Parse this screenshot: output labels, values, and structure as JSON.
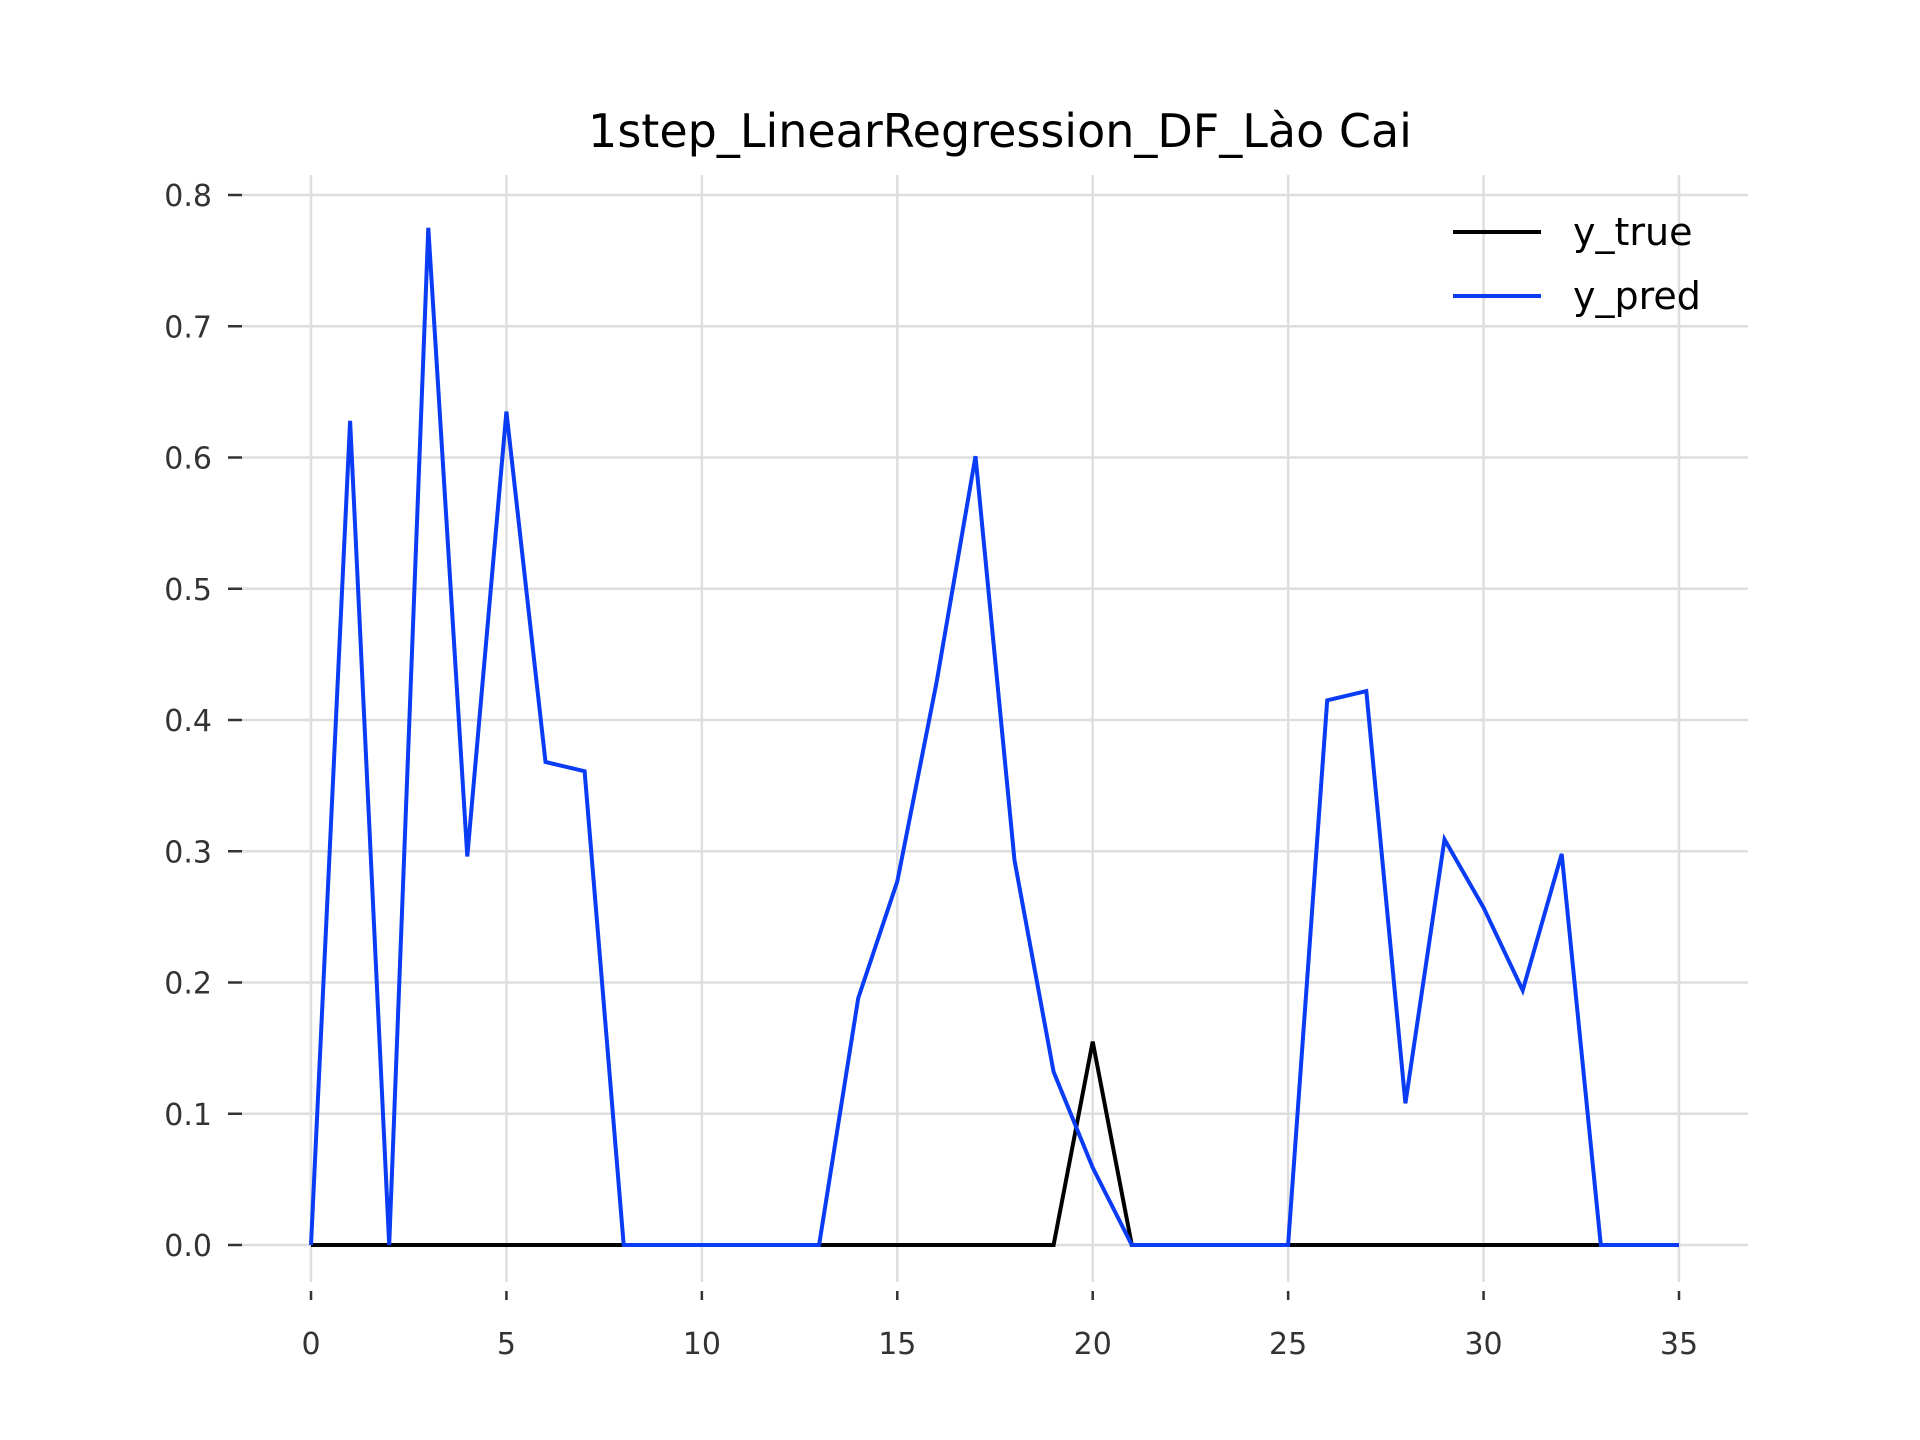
{
  "chart_data": {
    "type": "line",
    "title": "1step_LinearRegression_DF_Lào Cai",
    "xlabel": "",
    "ylabel": "",
    "xlim": [
      0,
      35
    ],
    "ylim": [
      0,
      0.8
    ],
    "xticks": [
      0,
      5,
      10,
      15,
      20,
      25,
      30,
      35
    ],
    "xtick_labels": [
      "0",
      "5",
      "10",
      "15",
      "20",
      "25",
      "30",
      "35"
    ],
    "yticks": [
      0,
      0.1,
      0.2,
      0.3,
      0.4,
      0.5,
      0.6,
      0.7,
      0.8
    ],
    "ytick_labels": [
      "0.0",
      "0.1",
      "0.2",
      "0.3",
      "0.4",
      "0.5",
      "0.6",
      "0.7",
      "0.8"
    ],
    "grid": true,
    "legend_position": "top-right",
    "x": [
      0,
      1,
      2,
      3,
      4,
      5,
      6,
      7,
      8,
      9,
      10,
      11,
      12,
      13,
      14,
      15,
      16,
      17,
      18,
      19,
      20,
      21,
      22,
      23,
      24,
      25,
      26,
      27,
      28,
      29,
      30,
      31,
      32,
      33,
      34,
      35
    ],
    "series": [
      {
        "name": "y_true",
        "color": "#000000",
        "values": [
          0,
          0,
          0,
          0,
          0,
          0,
          0,
          0,
          0,
          0,
          0,
          0,
          0,
          0,
          0,
          0,
          0,
          0,
          0,
          0,
          0.155,
          0,
          0,
          0,
          0,
          0,
          0,
          0,
          0,
          0,
          0,
          0,
          0,
          0,
          0,
          0
        ]
      },
      {
        "name": "y_pred",
        "color": "#0a3cf5",
        "values": [
          0,
          0.628,
          0,
          0.775,
          0.296,
          0.635,
          0.368,
          0.361,
          0,
          0,
          0,
          0,
          0,
          0,
          0.188,
          0.277,
          0.428,
          0.601,
          0.293,
          0.132,
          0.059,
          0,
          0,
          0,
          0,
          0,
          0.415,
          0.422,
          0.108,
          0.309,
          0.257,
          0.194,
          0.298,
          0,
          0,
          0
        ]
      }
    ]
  }
}
